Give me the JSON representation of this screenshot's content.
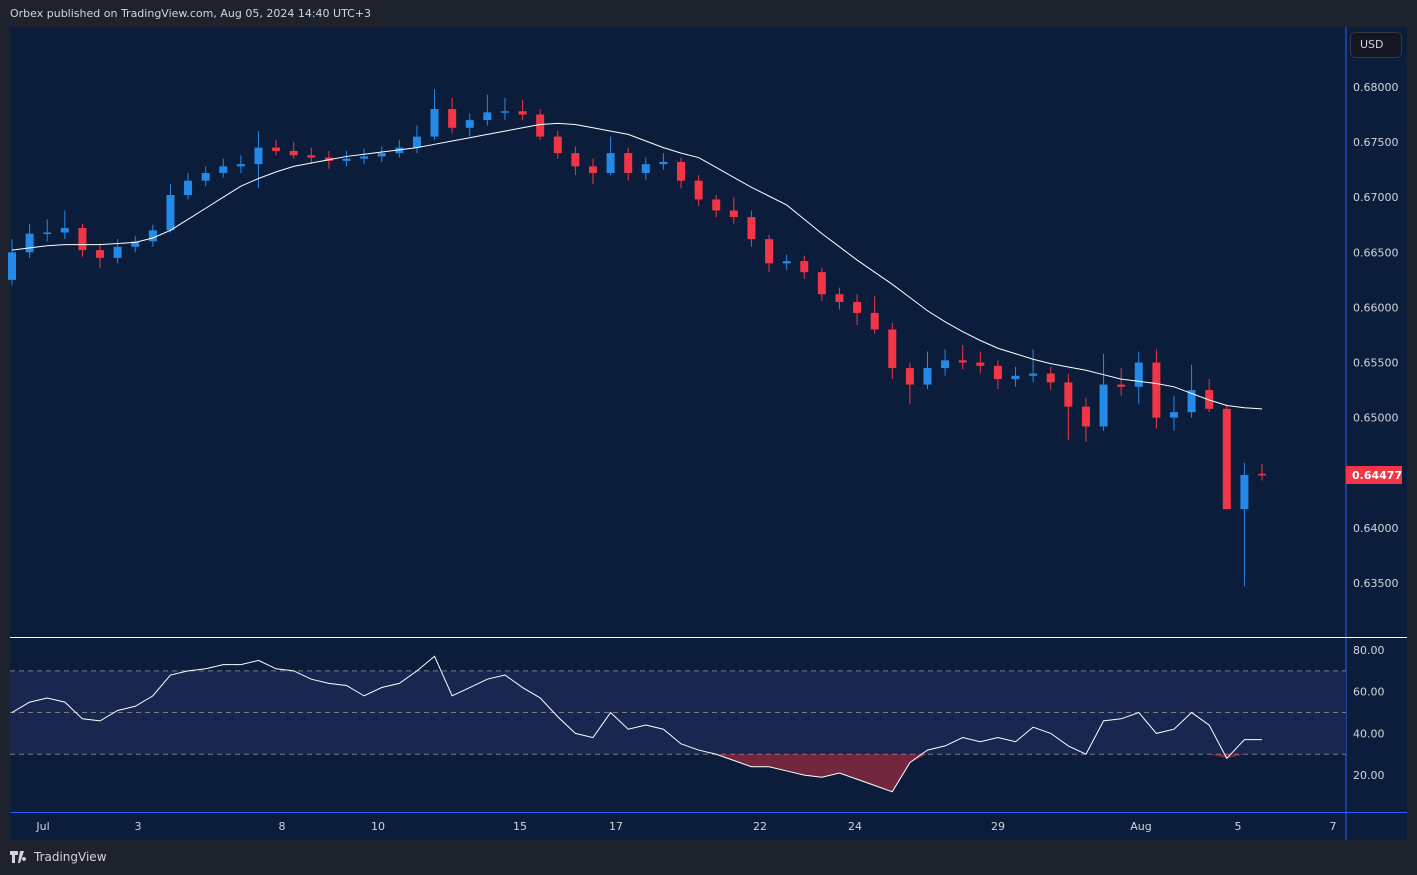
{
  "header": {
    "published": "Orbex published on TradingView.com, Aug 05, 2024 14:40 UTC+3"
  },
  "currency": "USD",
  "footer": {
    "logo_text": "TradingView"
  },
  "colors": {
    "up": "#2589e8",
    "down": "#f23645",
    "ma": "#ffffff",
    "rsi": "#ffffff",
    "background": "#0b1d3a",
    "rsi_band": "#182650"
  },
  "chart_data": [
    {
      "type": "candlestick",
      "price_ticks": [
        "0.68000",
        "0.67500",
        "0.67000",
        "0.66500",
        "0.66000",
        "0.65500",
        "0.65000",
        "0.64000",
        "0.63500"
      ],
      "last_price": "0.64477",
      "x_ticks": [
        "Jul",
        "3",
        "8",
        "10",
        "15",
        "17",
        "22",
        "24",
        "29",
        "Aug",
        "5",
        "7"
      ],
      "ylim": [
        0.632,
        0.6855
      ],
      "ohlc": [
        [
          0.6625,
          0.6662,
          0.662,
          0.665
        ],
        [
          0.665,
          0.6676,
          0.6645,
          0.6667
        ],
        [
          0.6667,
          0.668,
          0.666,
          0.6668
        ],
        [
          0.6668,
          0.6688,
          0.6662,
          0.6672
        ],
        [
          0.6672,
          0.6676,
          0.6646,
          0.6652
        ],
        [
          0.6652,
          0.6658,
          0.6636,
          0.6645
        ],
        [
          0.6645,
          0.6662,
          0.664,
          0.6655
        ],
        [
          0.6655,
          0.6665,
          0.665,
          0.666
        ],
        [
          0.666,
          0.6675,
          0.6655,
          0.667
        ],
        [
          0.667,
          0.6712,
          0.6668,
          0.6702
        ],
        [
          0.6702,
          0.6722,
          0.6698,
          0.6715
        ],
        [
          0.6715,
          0.6728,
          0.671,
          0.6722
        ],
        [
          0.6722,
          0.6735,
          0.6718,
          0.6728
        ],
        [
          0.6728,
          0.6738,
          0.6722,
          0.673
        ],
        [
          0.673,
          0.676,
          0.6708,
          0.6745
        ],
        [
          0.6745,
          0.6752,
          0.6738,
          0.6742
        ],
        [
          0.6742,
          0.675,
          0.6735,
          0.6738
        ],
        [
          0.6738,
          0.6745,
          0.673,
          0.6736
        ],
        [
          0.6736,
          0.6742,
          0.6726,
          0.6733
        ],
        [
          0.6733,
          0.6742,
          0.6728,
          0.6735
        ],
        [
          0.6735,
          0.6744,
          0.673,
          0.6737
        ],
        [
          0.6737,
          0.6746,
          0.6732,
          0.674
        ],
        [
          0.674,
          0.6752,
          0.6736,
          0.6745
        ],
        [
          0.6745,
          0.6765,
          0.674,
          0.6755
        ],
        [
          0.6755,
          0.6798,
          0.6752,
          0.678
        ],
        [
          0.678,
          0.679,
          0.6758,
          0.6763
        ],
        [
          0.6763,
          0.6776,
          0.6755,
          0.677
        ],
        [
          0.677,
          0.6793,
          0.6765,
          0.6777
        ],
        [
          0.6777,
          0.679,
          0.677,
          0.6778
        ],
        [
          0.6778,
          0.6788,
          0.677,
          0.6775
        ],
        [
          0.6775,
          0.678,
          0.6752,
          0.6755
        ],
        [
          0.6755,
          0.676,
          0.6735,
          0.674
        ],
        [
          0.674,
          0.6746,
          0.672,
          0.6728
        ],
        [
          0.6728,
          0.6735,
          0.6712,
          0.6722
        ],
        [
          0.6722,
          0.6755,
          0.672,
          0.674
        ],
        [
          0.674,
          0.6745,
          0.6715,
          0.6722
        ],
        [
          0.6722,
          0.6736,
          0.6716,
          0.673
        ],
        [
          0.673,
          0.674,
          0.6725,
          0.6732
        ],
        [
          0.6732,
          0.6736,
          0.6708,
          0.6715
        ],
        [
          0.6715,
          0.672,
          0.6692,
          0.6698
        ],
        [
          0.6698,
          0.6702,
          0.6682,
          0.6688
        ],
        [
          0.6688,
          0.67,
          0.6676,
          0.6682
        ],
        [
          0.6682,
          0.6688,
          0.6655,
          0.6662
        ],
        [
          0.6662,
          0.6666,
          0.6632,
          0.664
        ],
        [
          0.664,
          0.6648,
          0.6634,
          0.6642
        ],
        [
          0.6642,
          0.6647,
          0.6626,
          0.6632
        ],
        [
          0.6632,
          0.6636,
          0.6606,
          0.6612
        ],
        [
          0.6612,
          0.6618,
          0.6598,
          0.6605
        ],
        [
          0.6605,
          0.6612,
          0.6584,
          0.6595
        ],
        [
          0.6595,
          0.661,
          0.6576,
          0.658
        ],
        [
          0.658,
          0.6586,
          0.6535,
          0.6545
        ],
        [
          0.6545,
          0.655,
          0.6512,
          0.653
        ],
        [
          0.653,
          0.656,
          0.6526,
          0.6545
        ],
        [
          0.6545,
          0.6562,
          0.6538,
          0.6552
        ],
        [
          0.6552,
          0.6566,
          0.6544,
          0.655
        ],
        [
          0.655,
          0.656,
          0.654,
          0.6547
        ],
        [
          0.6547,
          0.6552,
          0.6526,
          0.6535
        ],
        [
          0.6535,
          0.6546,
          0.6528,
          0.6538
        ],
        [
          0.6538,
          0.6562,
          0.6532,
          0.654
        ],
        [
          0.654,
          0.6546,
          0.6525,
          0.6532
        ],
        [
          0.6532,
          0.654,
          0.648,
          0.651
        ],
        [
          0.651,
          0.6518,
          0.6478,
          0.6492
        ],
        [
          0.6492,
          0.6558,
          0.6488,
          0.653
        ],
        [
          0.653,
          0.6545,
          0.652,
          0.6528
        ],
        [
          0.6528,
          0.656,
          0.6512,
          0.655
        ],
        [
          0.655,
          0.6562,
          0.649,
          0.65
        ],
        [
          0.65,
          0.652,
          0.6488,
          0.6505
        ],
        [
          0.6505,
          0.6548,
          0.65,
          0.6525
        ],
        [
          0.6525,
          0.6535,
          0.6505,
          0.6508
        ],
        [
          0.6508,
          0.6512,
          0.6417,
          0.6417
        ],
        [
          0.6417,
          0.6459,
          0.6347,
          0.6448
        ],
        [
          0.6449,
          0.6458,
          0.6443,
          0.6448
        ]
      ],
      "moving_average": [
        0.6652,
        0.6654,
        0.6656,
        0.6657,
        0.6657,
        0.6657,
        0.6658,
        0.6659,
        0.6663,
        0.667,
        0.668,
        0.669,
        0.67,
        0.671,
        0.6717,
        0.6723,
        0.6728,
        0.6731,
        0.6734,
        0.6737,
        0.6739,
        0.6741,
        0.6743,
        0.6745,
        0.6748,
        0.6751,
        0.6754,
        0.6757,
        0.676,
        0.6763,
        0.6766,
        0.6767,
        0.6766,
        0.6763,
        0.676,
        0.6757,
        0.6751,
        0.6745,
        0.674,
        0.6736,
        0.6727,
        0.6718,
        0.6709,
        0.6701,
        0.6693,
        0.668,
        0.6667,
        0.6655,
        0.6643,
        0.6632,
        0.6621,
        0.6609,
        0.6597,
        0.6587,
        0.6578,
        0.657,
        0.6563,
        0.6558,
        0.6553,
        0.6549,
        0.6546,
        0.6543,
        0.6539,
        0.6535,
        0.6533,
        0.6531,
        0.6528,
        0.6522,
        0.6516,
        0.6511,
        0.6509,
        0.6508
      ]
    },
    {
      "type": "line",
      "y_ticks": [
        "80.00",
        "60.00",
        "40.00",
        "20.00"
      ],
      "ylim": [
        5,
        86
      ],
      "bands": [
        70,
        50,
        30
      ],
      "values": [
        50,
        55,
        57,
        55,
        47,
        46,
        51,
        53,
        58,
        68,
        70,
        71,
        73,
        73,
        75,
        71,
        70,
        66,
        64,
        63,
        58,
        62,
        64,
        70,
        77,
        58,
        62,
        66,
        68,
        62,
        57,
        48,
        40,
        38,
        50,
        42,
        44,
        42,
        35,
        32,
        30,
        27,
        24,
        24,
        22,
        20,
        19,
        21,
        18,
        15,
        12,
        26,
        32,
        34,
        38,
        36,
        38,
        36,
        43,
        40,
        34,
        30,
        46,
        47,
        50,
        40,
        42,
        50,
        44,
        28,
        37,
        37
      ]
    }
  ]
}
